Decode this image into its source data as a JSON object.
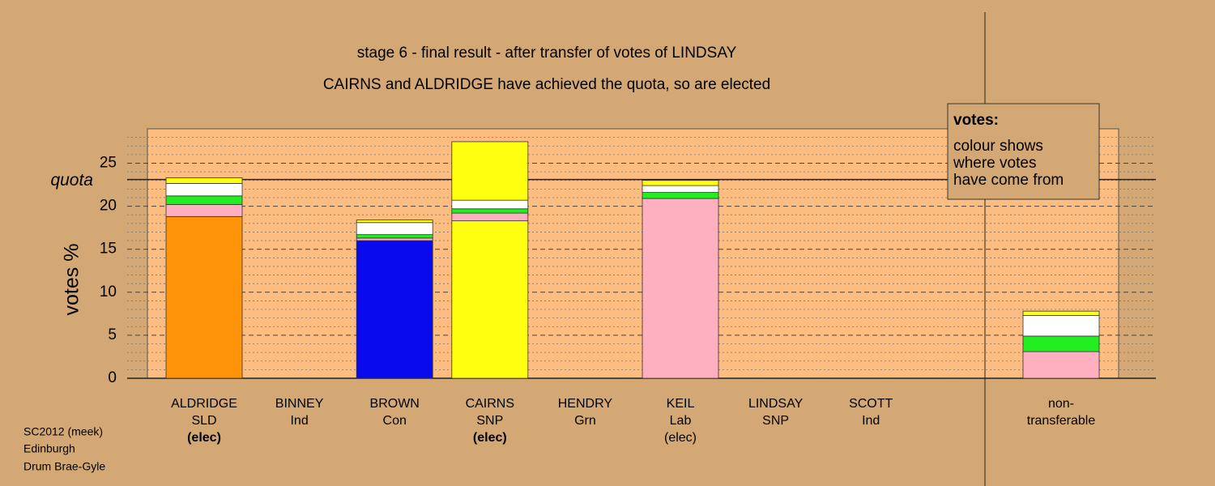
{
  "chart_data": {
    "type": "stacked_bar",
    "title": "stage 6 - final result - after transfer of votes of LINDSAY",
    "subtitle": "CAIRNS and ALDRIDGE have achieved the quota, so are elected",
    "ylabel": "votes %",
    "quota": {
      "value": 23.1,
      "label": "quota"
    },
    "ylim": [
      0,
      29
    ],
    "yticks": [
      0,
      5,
      10,
      15,
      20,
      25
    ],
    "minor_yticks": [
      1,
      2,
      3,
      4,
      6,
      7,
      8,
      9,
      11,
      12,
      13,
      14,
      16,
      17,
      18,
      19,
      21,
      22,
      23,
      24,
      26,
      27,
      28
    ],
    "categories": [
      {
        "lines": [
          "ALDRIDGE",
          "SLD",
          "(elec)"
        ],
        "bold": true
      },
      {
        "lines": [
          "BINNEY",
          "Ind"
        ],
        "bold": false
      },
      {
        "lines": [
          "BROWN",
          "Con"
        ],
        "bold": false
      },
      {
        "lines": [
          "CAIRNS",
          "SNP",
          "(elec)"
        ],
        "bold": true
      },
      {
        "lines": [
          "HENDRY",
          "Grn"
        ],
        "bold": false
      },
      {
        "lines": [
          "KEIL",
          "Lab",
          "(elec)"
        ],
        "bold": false
      },
      {
        "lines": [
          "LINDSAY",
          "SNP"
        ],
        "bold": false
      },
      {
        "lines": [
          "SCOTT",
          "Ind"
        ],
        "bold": false
      },
      {
        "lines": [
          "non-",
          "transferable"
        ],
        "bold": false
      }
    ],
    "stacks": [
      [
        {
          "color": "#ff9408",
          "value": 18.8
        },
        {
          "color": "#ffb0c0",
          "value": 1.4
        },
        {
          "color": "#22ee22",
          "value": 1.0
        },
        {
          "color": "#ffffff",
          "value": 1.45
        },
        {
          "color": "#ffff10",
          "value": 0.65
        }
      ],
      [],
      [
        {
          "color": "#0a0aee",
          "value": 16.0
        },
        {
          "color": "#ffb0c0",
          "value": 0.3
        },
        {
          "color": "#22ee22",
          "value": 0.4
        },
        {
          "color": "#ffffff",
          "value": 1.4
        },
        {
          "color": "#ffff10",
          "value": 0.3
        }
      ],
      [
        {
          "color": "#ffff10",
          "value": 18.3
        },
        {
          "color": "#ffb0c0",
          "value": 0.9
        },
        {
          "color": "#22ee22",
          "value": 0.5
        },
        {
          "color": "#ffffff",
          "value": 1.0
        },
        {
          "color": "#ffff10",
          "value": 6.8
        }
      ],
      [],
      [
        {
          "color": "#ffb0c0",
          "value": 20.9
        },
        {
          "color": "#22ee22",
          "value": 0.7
        },
        {
          "color": "#ffffff",
          "value": 0.8
        },
        {
          "color": "#ffff10",
          "value": 0.6
        }
      ],
      [],
      [],
      [
        {
          "color": "#ffb0c0",
          "value": 3.1
        },
        {
          "color": "#22ee22",
          "value": 1.8
        },
        {
          "color": "#ffffff",
          "value": 2.4
        },
        {
          "color": "#ffff10",
          "value": 0.5
        }
      ]
    ],
    "legend": {
      "title": "votes:",
      "lines": [
        "colour shows",
        "where votes",
        "have come from"
      ]
    },
    "footer": [
      "SC2012 (meek)",
      "Edinburgh",
      "Drum Brae-Gyle"
    ]
  }
}
